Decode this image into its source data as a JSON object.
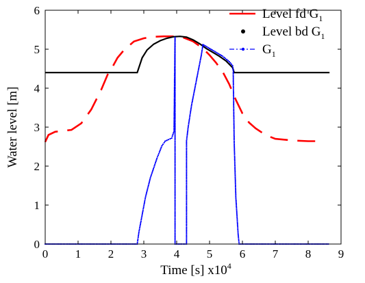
{
  "chart_data": {
    "type": "line",
    "xlabel": "Time [s] x10",
    "xlabel_exponent": "4",
    "ylabel": "Water level [m]",
    "xlim": [
      0,
      9
    ],
    "ylim": [
      0,
      6
    ],
    "xticks": [
      "0",
      "1",
      "2",
      "3",
      "4",
      "5",
      "6",
      "7",
      "8",
      "9"
    ],
    "yticks": [
      "0",
      "1",
      "2",
      "3",
      "4",
      "5",
      "6"
    ],
    "grid": false,
    "legend_position": "top-right",
    "series": [
      {
        "name": "Level fd G",
        "name_sub": "1",
        "color": "#ff0000",
        "style": "dashed",
        "x": [
          0.0,
          0.1,
          0.3,
          0.5,
          0.8,
          1.1,
          1.4,
          1.7,
          1.9,
          2.05,
          2.2,
          2.4,
          2.7,
          3.0,
          3.3,
          3.6,
          3.9,
          4.2,
          4.5,
          4.8,
          5.0,
          5.2,
          5.4,
          5.6,
          5.8,
          6.0,
          6.2,
          6.4,
          6.7,
          7.0,
          7.5,
          8.0,
          8.5
        ],
        "y": [
          2.62,
          2.8,
          2.88,
          2.9,
          2.93,
          3.1,
          3.45,
          3.95,
          4.35,
          4.55,
          4.78,
          4.98,
          5.2,
          5.28,
          5.32,
          5.33,
          5.33,
          5.3,
          5.2,
          5.02,
          4.85,
          4.65,
          4.42,
          4.1,
          3.7,
          3.35,
          3.12,
          2.97,
          2.8,
          2.7,
          2.66,
          2.64,
          2.64
        ]
      },
      {
        "name": "Level bd G",
        "name_sub": "1",
        "color": "#000000",
        "style": "solid",
        "x": [
          0.0,
          2.8,
          2.95,
          3.1,
          3.3,
          3.5,
          3.7,
          3.9,
          4.1,
          4.3,
          4.5,
          4.7,
          4.9,
          5.1,
          5.3,
          5.5,
          5.7,
          5.75,
          8.65
        ],
        "y": [
          4.4,
          4.4,
          4.78,
          4.98,
          5.13,
          5.22,
          5.28,
          5.32,
          5.33,
          5.31,
          5.24,
          5.14,
          5.02,
          4.92,
          4.82,
          4.7,
          4.53,
          4.4,
          4.4
        ]
      },
      {
        "name": "G",
        "name_sub": "1",
        "color": "#0000ff",
        "style": "dash-dot-markers",
        "x": [
          0.0,
          2.8,
          2.85,
          2.95,
          3.05,
          3.2,
          3.4,
          3.55,
          3.65,
          3.75,
          3.85,
          3.92,
          3.95,
          3.95,
          4.3,
          4.3,
          4.35,
          4.45,
          4.6,
          4.75,
          4.8,
          5.0,
          5.2,
          5.4,
          5.6,
          5.7,
          5.72,
          5.72,
          5.75,
          5.8,
          5.87,
          5.9,
          6.1,
          8.65
        ],
        "y": [
          0.0,
          0.0,
          0.3,
          0.75,
          1.2,
          1.7,
          2.2,
          2.52,
          2.64,
          2.68,
          2.72,
          2.9,
          5.3,
          0.0,
          0.0,
          2.65,
          3.0,
          3.55,
          4.2,
          4.85,
          5.12,
          5.02,
          4.92,
          4.82,
          4.68,
          4.58,
          4.45,
          4.4,
          2.6,
          1.2,
          0.25,
          0.0,
          0.0,
          0.0
        ]
      }
    ]
  }
}
